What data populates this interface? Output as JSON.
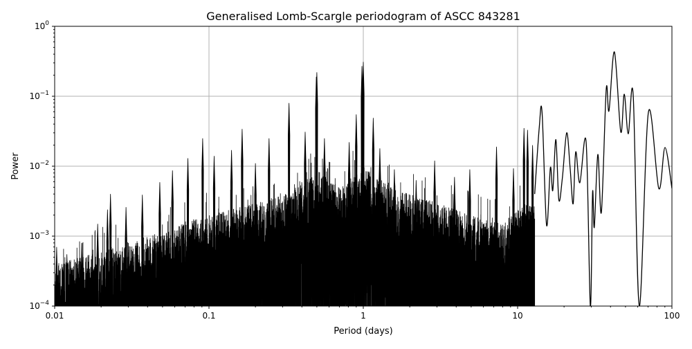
{
  "chart_data": {
    "type": "line",
    "title": "Generalised Lomb-Scargle periodogram of ASCC 843281",
    "xlabel": "Period (days)",
    "ylabel": "Power",
    "xscale": "log",
    "yscale": "log",
    "xlim": [
      0.01,
      100
    ],
    "ylim": [
      0.0001,
      1
    ],
    "grid": true,
    "line_color": "#000000",
    "grid_color": "#b0b0b0",
    "x_ticks": [
      {
        "v": 0.01,
        "label": "0.01"
      },
      {
        "v": 0.1,
        "label": "0.1"
      },
      {
        "v": 1,
        "label": "1"
      },
      {
        "v": 10,
        "label": "10"
      },
      {
        "v": 100,
        "label": "100"
      }
    ],
    "y_ticks": [
      {
        "v": 0.0001,
        "base": "10",
        "exp": "−4"
      },
      {
        "v": 0.001,
        "base": "10",
        "exp": "−3"
      },
      {
        "v": 0.01,
        "base": "10",
        "exp": "−2"
      },
      {
        "v": 0.1,
        "base": "10",
        "exp": "−1"
      },
      {
        "v": 1,
        "base": "10",
        "exp": "0"
      }
    ],
    "noise_envelope": [
      [
        0.01,
        0.0004
      ],
      [
        0.02,
        0.0006
      ],
      [
        0.05,
        0.0012
      ],
      [
        0.1,
        0.002
      ],
      [
        0.2,
        0.003
      ],
      [
        0.3,
        0.004
      ],
      [
        0.45,
        0.007
      ],
      [
        0.5,
        0.009
      ],
      [
        0.7,
        0.005
      ],
      [
        1,
        0.01
      ],
      [
        1.5,
        0.005
      ],
      [
        2,
        0.004
      ],
      [
        3,
        0.003
      ],
      [
        5,
        0.002
      ],
      [
        8,
        0.0015
      ],
      [
        11,
        0.003
      ]
    ],
    "peaks": [
      [
        0.0103,
        0.0007
      ],
      [
        0.012,
        0.00055
      ],
      [
        0.015,
        0.0008
      ],
      [
        0.019,
        0.0015
      ],
      [
        0.022,
        0.0024
      ],
      [
        0.023,
        0.004
      ],
      [
        0.029,
        0.0026
      ],
      [
        0.037,
        0.0039
      ],
      [
        0.048,
        0.0059
      ],
      [
        0.058,
        0.0087
      ],
      [
        0.073,
        0.013
      ],
      [
        0.091,
        0.025
      ],
      [
        0.108,
        0.014
      ],
      [
        0.14,
        0.017
      ],
      [
        0.164,
        0.034
      ],
      [
        0.2,
        0.011
      ],
      [
        0.245,
        0.025
      ],
      [
        0.33,
        0.08
      ],
      [
        0.42,
        0.031
      ],
      [
        0.496,
        0.19
      ],
      [
        0.5,
        0.22
      ],
      [
        0.56,
        0.025
      ],
      [
        0.81,
        0.022
      ],
      [
        0.9,
        0.055
      ],
      [
        0.98,
        0.27
      ],
      [
        1.0,
        0.31
      ],
      [
        1.16,
        0.049
      ],
      [
        1.28,
        0.018
      ],
      [
        1.59,
        0.009
      ],
      [
        2.2,
        0.0063
      ],
      [
        2.9,
        0.012
      ],
      [
        3.9,
        0.007
      ],
      [
        4.9,
        0.009
      ],
      [
        7.3,
        0.019
      ],
      [
        9.4,
        0.0093
      ],
      [
        11.0,
        0.035
      ],
      [
        11.6,
        0.033
      ],
      [
        12.5,
        0.02
      ]
    ],
    "long_period_curve": [
      [
        12.9,
        0.004
      ],
      [
        13.8,
        0.035
      ],
      [
        14.4,
        0.059
      ],
      [
        15.4,
        0.00144
      ],
      [
        16.3,
        0.0095
      ],
      [
        16.9,
        0.0045
      ],
      [
        17.7,
        0.024
      ],
      [
        18.5,
        0.0033
      ],
      [
        19.5,
        0.0068
      ],
      [
        20.8,
        0.03
      ],
      [
        21.9,
        0.0093
      ],
      [
        22.9,
        0.0029
      ],
      [
        23.8,
        0.016
      ],
      [
        25.3,
        0.0058
      ],
      [
        27.8,
        0.022
      ],
      [
        29.6,
        0.0001
      ],
      [
        30.6,
        0.0042
      ],
      [
        31.4,
        0.00134
      ],
      [
        33.1,
        0.0147
      ],
      [
        34.9,
        0.0022
      ],
      [
        37.5,
        0.125
      ],
      [
        39.1,
        0.062
      ],
      [
        42.4,
        0.43
      ],
      [
        46.6,
        0.031
      ],
      [
        49.1,
        0.107
      ],
      [
        52.1,
        0.029
      ],
      [
        56.1,
        0.104
      ],
      [
        61.5,
        0.0001
      ],
      [
        70.4,
        0.059
      ],
      [
        82.2,
        0.0048
      ],
      [
        90.2,
        0.0185
      ],
      [
        100,
        0.0048
      ]
    ]
  }
}
